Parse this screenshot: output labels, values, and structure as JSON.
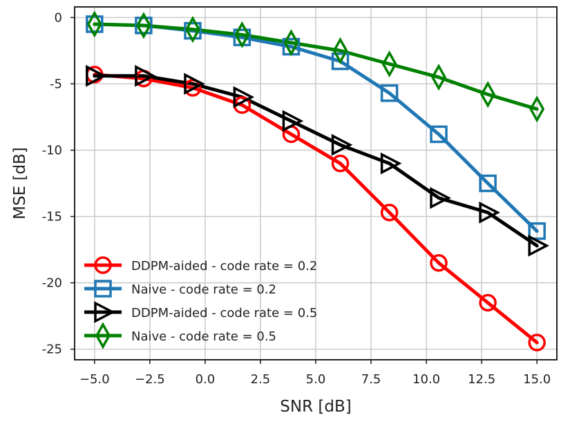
{
  "chart_data": {
    "type": "line",
    "title": "",
    "xlabel": "SNR [dB]",
    "ylabel": "MSE [dB]",
    "xlim": [
      -5.9,
      15.9
    ],
    "ylim": [
      -25.8,
      0.8
    ],
    "grid": true,
    "legend_placement": "lower-left",
    "x": [
      -5.0,
      -2.78,
      -0.56,
      1.67,
      3.89,
      6.11,
      8.33,
      10.56,
      12.78,
      15.0
    ],
    "xticks": [
      -5.0,
      -2.5,
      0.0,
      2.5,
      5.0,
      7.5,
      10.0,
      12.5,
      15.0
    ],
    "xtick_labels": [
      "−5.0",
      "−2.5",
      "0.0",
      "2.5",
      "5.0",
      "7.5",
      "10.0",
      "12.5",
      "15.0"
    ],
    "yticks": [
      0,
      -5,
      -10,
      -15,
      -20,
      -25
    ],
    "ytick_labels": [
      "0",
      "-5",
      "-10",
      "-15",
      "-20",
      "-25"
    ],
    "series": [
      {
        "name": "DDPM-aided - code rate = 0.2",
        "color": "#ff0000",
        "marker": "circle",
        "values": [
          -4.3,
          -4.6,
          -5.3,
          -6.6,
          -8.8,
          -11.0,
          -14.7,
          -18.5,
          -21.5,
          -24.5
        ]
      },
      {
        "name": "Naive - code rate = 0.2",
        "color": "#1f77b4",
        "marker": "square",
        "values": [
          -0.5,
          -0.6,
          -1.0,
          -1.5,
          -2.2,
          -3.3,
          -5.7,
          -8.8,
          -12.5,
          -16.1
        ]
      },
      {
        "name": "DDPM-aided - code rate = 0.5",
        "color": "#000000",
        "marker": "triangle-right",
        "values": [
          -4.4,
          -4.4,
          -5.0,
          -6.0,
          -7.8,
          -9.6,
          -11.0,
          -13.6,
          -14.7,
          -17.2
        ]
      },
      {
        "name": "Naive - code rate = 0.5",
        "color": "#008000",
        "marker": "thin-diamond",
        "values": [
          -0.5,
          -0.6,
          -0.9,
          -1.3,
          -1.9,
          -2.5,
          -3.5,
          -4.5,
          -5.8,
          -6.9
        ]
      }
    ]
  }
}
